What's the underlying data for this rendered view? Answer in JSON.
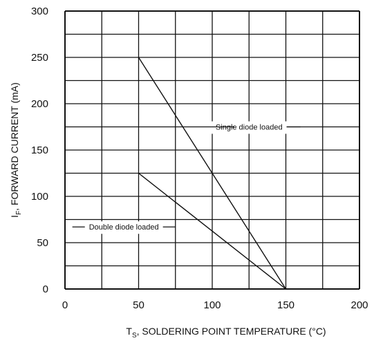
{
  "chart_data": {
    "type": "line",
    "xlabel": {
      "main": "T",
      "sub": "S",
      "rest": ", SOLDERING POINT TEMPERATURE (°C)"
    },
    "ylabel": {
      "main": "I",
      "sub": "F",
      "rest": ", FORWARD CURRENT (mA)"
    },
    "xlim": [
      0,
      200
    ],
    "ylim": [
      0,
      300
    ],
    "x_ticks": [
      0,
      50,
      100,
      150,
      200
    ],
    "y_ticks": [
      0,
      50,
      100,
      150,
      200,
      250,
      300
    ],
    "x_grid_step": 25,
    "y_grid_step": 25,
    "grid": true,
    "series": [
      {
        "name": "Single diode loaded",
        "x": [
          50,
          150
        ],
        "y": [
          250,
          0
        ]
      },
      {
        "name": "Double diode loaded",
        "x": [
          50,
          150
        ],
        "y": [
          125,
          0
        ]
      }
    ],
    "annotations": [
      {
        "text": "Single diode loaded",
        "at_x": 125,
        "at_y": 175,
        "leader_x": [
          115,
          160
        ]
      },
      {
        "text": "Double diode loaded",
        "at_x": 40,
        "at_y": 67,
        "leader_x": [
          5,
          75
        ]
      }
    ]
  }
}
